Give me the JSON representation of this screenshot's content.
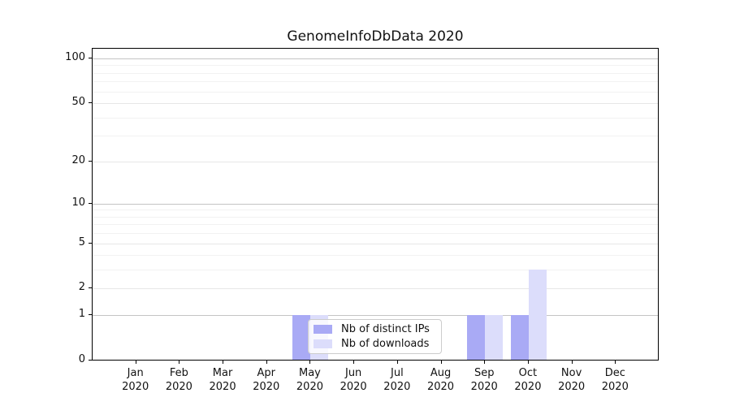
{
  "title": "GenomeInfoDbData 2020",
  "year_label": "2020",
  "legend": {
    "items": [
      {
        "label": "Nb of distinct IPs",
        "color": "#a9aaf5"
      },
      {
        "label": "Nb of downloads",
        "color": "#dcddfb"
      }
    ]
  },
  "chart_data": {
    "type": "bar",
    "title": "GenomeInfoDbData 2020",
    "categories": [
      "Jan",
      "Feb",
      "Mar",
      "Apr",
      "May",
      "Jun",
      "Jul",
      "Aug",
      "Sep",
      "Oct",
      "Nov",
      "Dec"
    ],
    "category_year": "2020",
    "series": [
      {
        "name": "Nb of distinct IPs",
        "color": "#a9aaf5",
        "values": [
          0,
          0,
          0,
          0,
          1,
          0,
          0,
          0,
          1,
          1,
          0,
          0
        ]
      },
      {
        "name": "Nb of downloads",
        "color": "#dcddfb",
        "values": [
          0,
          0,
          0,
          0,
          1,
          0,
          0,
          0,
          1,
          3,
          0,
          0
        ]
      }
    ],
    "xlabel": "",
    "ylabel": "",
    "y_scale": "log1p",
    "ylim": [
      0,
      116
    ],
    "y_ticks": [
      0,
      1,
      2,
      5,
      10,
      20,
      50,
      100
    ],
    "y_power_gridlines": [
      1,
      10,
      100
    ],
    "y_minor_gridlines": [
      3,
      4,
      6,
      7,
      8,
      9,
      30,
      40,
      60,
      70,
      80,
      90
    ],
    "grid": "on",
    "legend_position": "lower-center-inside"
  },
  "style": {
    "power_grid_color": "#c4c4c4",
    "major_grid_color": "#e7e7e7",
    "minor_grid_color": "#f2f2f2",
    "spine_color": "#000000",
    "background": "#ffffff"
  }
}
